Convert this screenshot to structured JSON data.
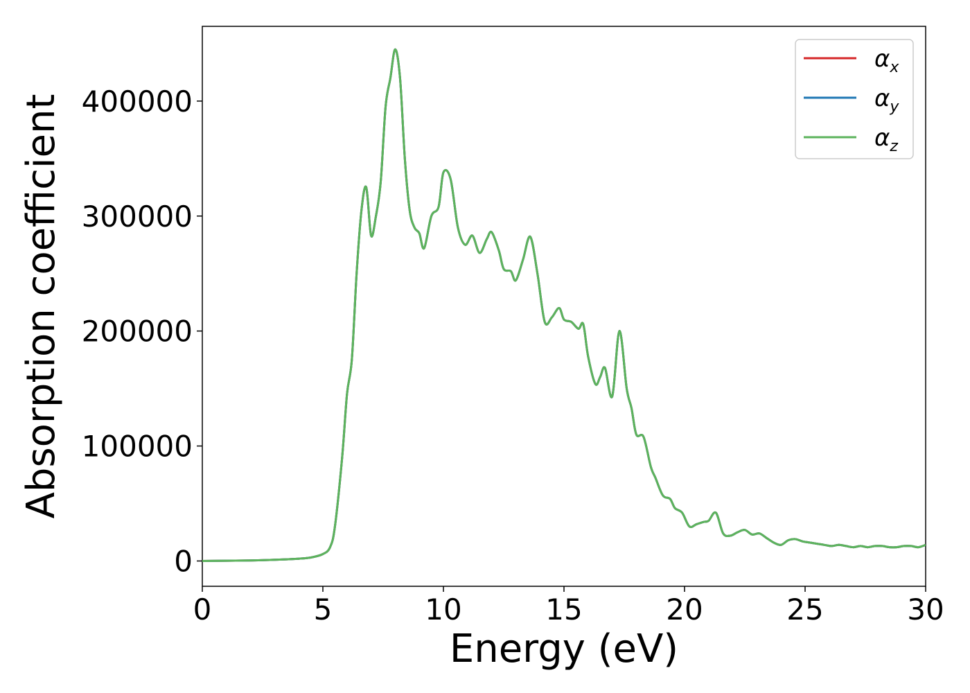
{
  "chart_data": {
    "type": "line",
    "title": "",
    "xlabel": "Energy (eV)",
    "ylabel": "Absorption coefficient",
    "xlim": [
      0,
      30
    ],
    "ylim": [
      -22000,
      465000
    ],
    "xticks": [
      0,
      5,
      10,
      15,
      20,
      25,
      30
    ],
    "yticks": [
      0,
      100000,
      200000,
      300000,
      400000
    ],
    "grid": false,
    "legend_position": "top-right",
    "series": [
      {
        "name": "α",
        "subscript": "x",
        "color": "#d62728",
        "x": [
          0,
          2,
          3,
          4,
          4.5,
          5,
          5.3,
          5.5,
          5.8,
          6,
          6.2,
          6.4,
          6.6,
          6.8,
          7.0,
          7.2,
          7.4,
          7.6,
          7.8,
          8.0,
          8.2,
          8.4,
          8.6,
          8.8,
          9.0,
          9.2,
          9.5,
          9.8,
          10.0,
          10.3,
          10.6,
          10.9,
          11.2,
          11.5,
          11.8,
          12.0,
          12.3,
          12.5,
          12.8,
          13.0,
          13.3,
          13.6,
          13.9,
          14.2,
          14.5,
          14.8,
          15.0,
          15.3,
          15.6,
          15.8,
          16.0,
          16.3,
          16.5,
          16.7,
          17.0,
          17.3,
          17.6,
          17.8,
          18.0,
          18.3,
          18.6,
          18.8,
          19.1,
          19.4,
          19.6,
          19.9,
          20.2,
          20.5,
          20.8,
          21.0,
          21.3,
          21.6,
          21.9,
          22.2,
          22.5,
          22.8,
          23.1,
          23.4,
          23.7,
          24.0,
          24.3,
          24.6,
          24.9,
          25.2,
          25.5,
          25.8,
          26.1,
          26.4,
          26.7,
          27.0,
          27.3,
          27.6,
          27.9,
          28.2,
          28.5,
          28.8,
          29.1,
          29.4,
          29.7,
          30
        ],
        "y": [
          0,
          500,
          1000,
          2000,
          3000,
          6000,
          12000,
          30000,
          90000,
          145000,
          175000,
          250000,
          305000,
          325000,
          283000,
          300000,
          330000,
          395000,
          420000,
          445000,
          420000,
          350000,
          305000,
          290000,
          285000,
          272000,
          300000,
          308000,
          338000,
          332000,
          290000,
          275000,
          283000,
          268000,
          280000,
          286000,
          270000,
          254000,
          252000,
          244000,
          262000,
          282000,
          250000,
          208000,
          212000,
          220000,
          210000,
          208000,
          202000,
          206000,
          178000,
          154000,
          160000,
          168000,
          143000,
          200000,
          150000,
          133000,
          110000,
          108000,
          82000,
          72000,
          57000,
          54000,
          46000,
          42000,
          30000,
          32000,
          34000,
          35000,
          42000,
          24000,
          22000,
          25000,
          27000,
          23000,
          24000,
          20000,
          16000,
          14000,
          18000,
          19000,
          17000,
          16000,
          15000,
          14000,
          13000,
          14000,
          13000,
          12000,
          13000,
          12000,
          13000,
          13000,
          12000,
          12000,
          13000,
          13000,
          12000,
          14000
        ]
      },
      {
        "name": "α",
        "subscript": "y",
        "color": "#1f77b4",
        "same_as": 0
      },
      {
        "name": "α",
        "subscript": "z",
        "color": "#5cb35c",
        "same_as": 0
      }
    ]
  }
}
